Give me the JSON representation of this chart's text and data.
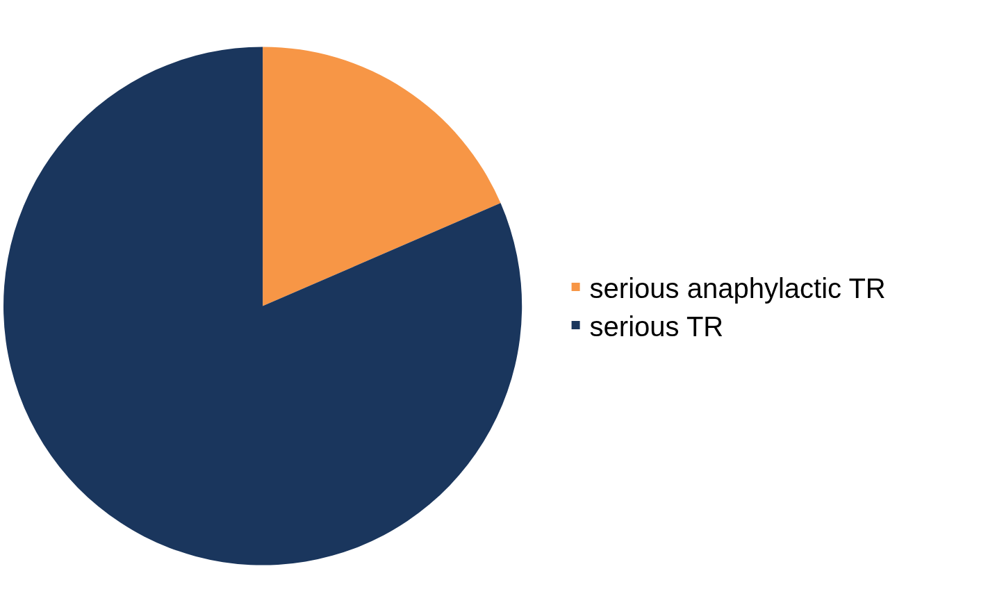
{
  "chart_data": {
    "type": "pie",
    "categories": [
      "serious anaphylactic TR",
      "serious TR"
    ],
    "values": [
      18.5,
      81.5
    ],
    "colors": [
      "#f79646",
      "#1a365d"
    ],
    "legend": "right"
  }
}
